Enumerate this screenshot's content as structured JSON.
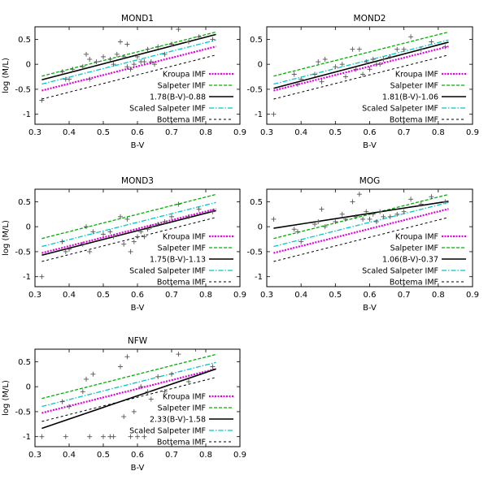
{
  "chart_data": [
    {
      "type": "scatter",
      "title": "MOND1",
      "xlabel": "B-V",
      "ylabel": "log (M/L)",
      "xlim": [
        0.3,
        0.9
      ],
      "ylim": [
        -1.2,
        0.75
      ],
      "xticks": [
        "0.3",
        "0.4",
        "0.5",
        "0.6",
        "0.7",
        "0.8",
        "0.9"
      ],
      "yticks": [
        "-1",
        "-0.5",
        "0",
        "0.5"
      ],
      "legend": [
        "Kroupa IMF",
        "Salpeter IMF",
        "1.78(B-V)-0.88",
        "Scaled Salpeter IMF",
        "Bottema IMF"
      ],
      "fit": {
        "slope": 1.78,
        "intercept": -0.88
      },
      "points": [
        [
          0.32,
          -0.72
        ],
        [
          0.38,
          -0.15
        ],
        [
          0.39,
          -0.3
        ],
        [
          0.4,
          -0.3
        ],
        [
          0.41,
          -0.1
        ],
        [
          0.44,
          -0.05
        ],
        [
          0.45,
          0.2
        ],
        [
          0.46,
          0.1
        ],
        [
          0.46,
          -0.3
        ],
        [
          0.48,
          0.05
        ],
        [
          0.5,
          0.15
        ],
        [
          0.52,
          0.1
        ],
        [
          0.53,
          0.0
        ],
        [
          0.54,
          0.2
        ],
        [
          0.55,
          0.45
        ],
        [
          0.56,
          0.15
        ],
        [
          0.57,
          0.4
        ],
        [
          0.57,
          -0.05
        ],
        [
          0.58,
          -0.1
        ],
        [
          0.59,
          0.0
        ],
        [
          0.6,
          0.15
        ],
        [
          0.61,
          0.05
        ],
        [
          0.62,
          0.05
        ],
        [
          0.63,
          0.3
        ],
        [
          0.64,
          0.05
        ],
        [
          0.65,
          0.0
        ],
        [
          0.66,
          0.35
        ],
        [
          0.68,
          0.2
        ],
        [
          0.7,
          0.4
        ],
        [
          0.72,
          0.7
        ],
        [
          0.75,
          0.45
        ],
        [
          0.78,
          0.55
        ],
        [
          0.82,
          0.5
        ]
      ]
    },
    {
      "type": "scatter",
      "title": "MOND2",
      "xlabel": "B-V",
      "ylabel": "",
      "xlim": [
        0.3,
        0.9
      ],
      "ylim": [
        -1.2,
        0.75
      ],
      "xticks": [
        "0.3",
        "0.4",
        "0.5",
        "0.6",
        "0.7",
        "0.8",
        "0.9"
      ],
      "yticks": [
        "-1",
        "-0.5",
        "0",
        "0.5"
      ],
      "legend": [
        "Kroupa IMF",
        "Salpeter IMF",
        "1.81(B-V)-1.06",
        "Scaled Salpeter IMF",
        "Bottema IMF"
      ],
      "fit": {
        "slope": 1.81,
        "intercept": -1.06
      },
      "points": [
        [
          0.32,
          -1.0
        ],
        [
          0.38,
          -0.2
        ],
        [
          0.39,
          -0.4
        ],
        [
          0.4,
          -0.3
        ],
        [
          0.44,
          -0.2
        ],
        [
          0.45,
          0.05
        ],
        [
          0.46,
          -0.35
        ],
        [
          0.47,
          0.1
        ],
        [
          0.5,
          -0.05
        ],
        [
          0.52,
          0.0
        ],
        [
          0.53,
          -0.25
        ],
        [
          0.55,
          0.3
        ],
        [
          0.56,
          -0.1
        ],
        [
          0.57,
          0.3
        ],
        [
          0.58,
          -0.2
        ],
        [
          0.59,
          0.05
        ],
        [
          0.6,
          -0.1
        ],
        [
          0.61,
          0.1
        ],
        [
          0.62,
          0.0
        ],
        [
          0.63,
          0.0
        ],
        [
          0.64,
          0.1
        ],
        [
          0.66,
          0.15
        ],
        [
          0.68,
          0.3
        ],
        [
          0.7,
          0.3
        ],
        [
          0.72,
          0.55
        ],
        [
          0.75,
          0.3
        ],
        [
          0.78,
          0.45
        ],
        [
          0.82,
          0.35
        ]
      ]
    },
    {
      "type": "scatter",
      "title": "MOND3",
      "xlabel": "B-V",
      "ylabel": "log (M/L)",
      "xlim": [
        0.3,
        0.9
      ],
      "ylim": [
        -1.2,
        0.75
      ],
      "xticks": [
        "0.3",
        "0.4",
        "0.5",
        "0.6",
        "0.7",
        "0.8",
        "0.9"
      ],
      "yticks": [
        "-1",
        "-0.5",
        "0",
        "0.5"
      ],
      "legend": [
        "Kroupa IMF",
        "Salpeter IMF",
        "1.75(B-V)-1.13",
        "Scaled Salpeter IMF",
        "Bottema IMF"
      ],
      "fit": {
        "slope": 1.75,
        "intercept": -1.13
      },
      "points": [
        [
          0.32,
          -1.0
        ],
        [
          0.38,
          -0.3
        ],
        [
          0.39,
          -0.5
        ],
        [
          0.4,
          -0.45
        ],
        [
          0.44,
          -0.35
        ],
        [
          0.45,
          0.0
        ],
        [
          0.46,
          -0.5
        ],
        [
          0.47,
          -0.1
        ],
        [
          0.5,
          -0.15
        ],
        [
          0.52,
          -0.1
        ],
        [
          0.53,
          -0.2
        ],
        [
          0.55,
          0.2
        ],
        [
          0.56,
          -0.35
        ],
        [
          0.57,
          0.15
        ],
        [
          0.58,
          -0.5
        ],
        [
          0.59,
          -0.3
        ],
        [
          0.6,
          -0.2
        ],
        [
          0.61,
          -0.1
        ],
        [
          0.62,
          -0.2
        ],
        [
          0.63,
          -0.05
        ],
        [
          0.64,
          0.0
        ],
        [
          0.66,
          0.05
        ],
        [
          0.68,
          0.1
        ],
        [
          0.7,
          0.2
        ],
        [
          0.72,
          0.45
        ],
        [
          0.75,
          0.2
        ],
        [
          0.78,
          0.35
        ],
        [
          0.82,
          0.3
        ]
      ]
    },
    {
      "type": "scatter",
      "title": "MOG",
      "xlabel": "B-V",
      "ylabel": "",
      "xlim": [
        0.3,
        0.9
      ],
      "ylim": [
        -1.2,
        0.75
      ],
      "xticks": [
        "0.3",
        "0.4",
        "0.5",
        "0.6",
        "0.7",
        "0.8",
        "0.9"
      ],
      "yticks": [
        "-1",
        "-0.5",
        "0",
        "0.5"
      ],
      "legend": [
        "Kroupa IMF",
        "Salpeter IMF",
        "1.06(B-V)-0.37",
        "Scaled Salpeter IMF",
        "Bottema IMF"
      ],
      "fit": {
        "slope": 1.06,
        "intercept": -0.37
      },
      "points": [
        [
          0.32,
          0.15
        ],
        [
          0.38,
          -0.05
        ],
        [
          0.39,
          -0.1
        ],
        [
          0.4,
          -0.3
        ],
        [
          0.44,
          0.05
        ],
        [
          0.45,
          0.1
        ],
        [
          0.46,
          0.35
        ],
        [
          0.47,
          0.0
        ],
        [
          0.5,
          0.1
        ],
        [
          0.52,
          0.25
        ],
        [
          0.53,
          0.15
        ],
        [
          0.55,
          0.5
        ],
        [
          0.56,
          0.2
        ],
        [
          0.57,
          0.65
        ],
        [
          0.58,
          0.15
        ],
        [
          0.59,
          0.3
        ],
        [
          0.6,
          0.15
        ],
        [
          0.61,
          0.25
        ],
        [
          0.62,
          0.1
        ],
        [
          0.63,
          0.3
        ],
        [
          0.64,
          0.2
        ],
        [
          0.66,
          0.2
        ],
        [
          0.68,
          0.25
        ],
        [
          0.7,
          0.3
        ],
        [
          0.72,
          0.55
        ],
        [
          0.75,
          0.45
        ],
        [
          0.78,
          0.6
        ],
        [
          0.82,
          0.5
        ]
      ]
    },
    {
      "type": "scatter",
      "title": "NFW",
      "xlabel": "B-V",
      "ylabel": "log (M/L)",
      "xlim": [
        0.3,
        0.9
      ],
      "ylim": [
        -1.2,
        0.75
      ],
      "xticks": [
        "0.3",
        "0.4",
        "0.5",
        "0.6",
        "0.7",
        "0.8",
        "0.9"
      ],
      "yticks": [
        "-1",
        "-0.5",
        "0",
        "0.5"
      ],
      "legend": [
        "Kroupa IMF",
        "Salpeter IMF",
        "2.33(B-V)-1.58",
        "Scaled Salpeter IMF",
        "Bottema IMF"
      ],
      "fit": {
        "slope": 2.33,
        "intercept": -1.58
      },
      "points": [
        [
          0.32,
          -1.0
        ],
        [
          0.38,
          -0.3
        ],
        [
          0.39,
          -1.0
        ],
        [
          0.4,
          -0.4
        ],
        [
          0.44,
          -0.1
        ],
        [
          0.45,
          0.15
        ],
        [
          0.46,
          -1.0
        ],
        [
          0.47,
          0.25
        ],
        [
          0.5,
          -1.0
        ],
        [
          0.52,
          -1.0
        ],
        [
          0.53,
          -1.0
        ],
        [
          0.55,
          0.4
        ],
        [
          0.56,
          -0.6
        ],
        [
          0.57,
          0.6
        ],
        [
          0.58,
          -1.0
        ],
        [
          0.59,
          -0.5
        ],
        [
          0.6,
          -1.0
        ],
        [
          0.61,
          0.0
        ],
        [
          0.62,
          -1.0
        ],
        [
          0.63,
          -0.1
        ],
        [
          0.64,
          -0.25
        ],
        [
          0.66,
          0.2
        ],
        [
          0.68,
          -0.1
        ],
        [
          0.7,
          0.25
        ],
        [
          0.72,
          0.65
        ],
        [
          0.75,
          0.1
        ],
        [
          0.77,
          0.75
        ],
        [
          0.82,
          0.4
        ]
      ]
    }
  ],
  "imf_lines": {
    "kroupa": {
      "slope": 1.73,
      "intercept": -1.08,
      "color": "#e000e0"
    },
    "salpeter": {
      "slope": 1.73,
      "intercept": -0.79,
      "color": "#00b000"
    },
    "scaled_salpeter": {
      "slope": 1.73,
      "intercept": -0.95,
      "color": "#00c8c8"
    },
    "bottema": {
      "slope": 1.73,
      "intercept": -1.25,
      "color": "#000000"
    },
    "fit_color": "#000000",
    "point_color": "#555555"
  }
}
